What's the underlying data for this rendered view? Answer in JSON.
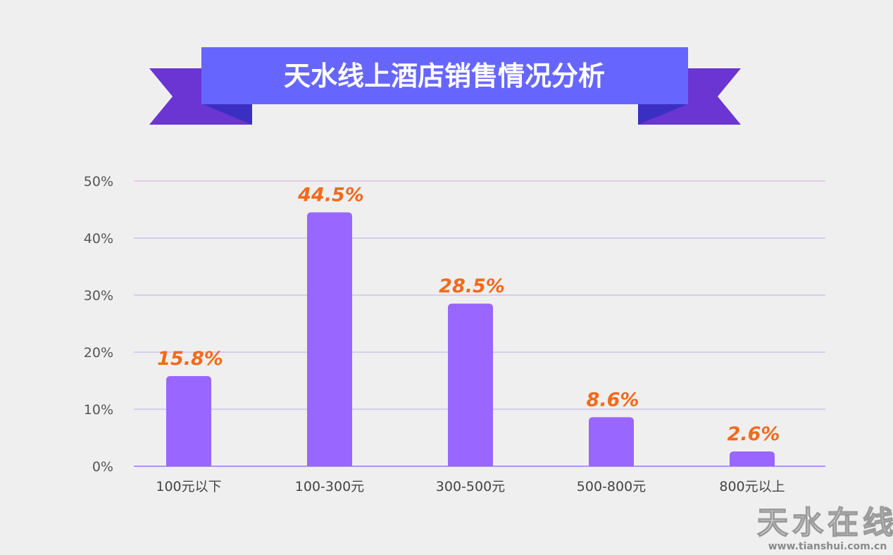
{
  "banner": {
    "title": "天水线上酒店销售情况分析",
    "colors": {
      "ribbon_front": "#6666ff",
      "ribbon_back": "#6a35d3",
      "ribbon_fold": "#3a2fc2"
    }
  },
  "chart_data": {
    "type": "bar",
    "title": "天水线上酒店销售情况分析",
    "categories": [
      "100元以下",
      "100-300元",
      "300-500元",
      "500-800元",
      "800元以上"
    ],
    "values": [
      15.8,
      44.5,
      28.5,
      8.6,
      2.6
    ],
    "value_labels": [
      "15.8%",
      "44.5%",
      "28.5%",
      "8.6%",
      "2.6%"
    ],
    "yticks": [
      "0%",
      "10%",
      "20%",
      "30%",
      "40%",
      "50%"
    ],
    "ylim": [
      0,
      50
    ],
    "xlabel": "",
    "ylabel": "",
    "grid": true,
    "legend": "none",
    "colors": {
      "bar": "#9966ff",
      "label": "#f26a1b",
      "grid": "#b9aee6",
      "axis": "#8f7fe0"
    }
  },
  "watermark": {
    "text": "天水在线",
    "url": "www.tianshui.com.cn"
  }
}
